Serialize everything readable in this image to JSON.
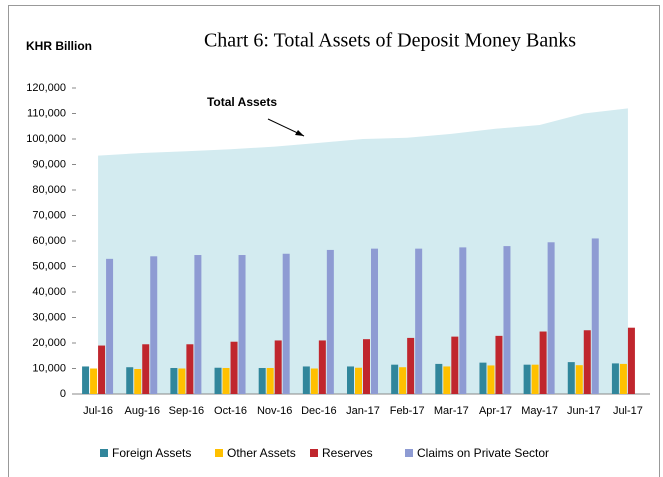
{
  "chart_data": {
    "type": "bar",
    "title": "Chart 6: Total Assets of Deposit Money Banks",
    "y_label": "KHR Billion",
    "annotation": "Total Assets",
    "categories": [
      "Jul-16",
      "Aug-16",
      "Sep-16",
      "Oct-16",
      "Nov-16",
      "Dec-16",
      "Jan-17",
      "Feb-17",
      "Mar-17",
      "Apr-17",
      "May-17",
      "Jun-17",
      "Jul-17"
    ],
    "area": {
      "color": "#d3ebf0",
      "values": [
        93500,
        94500,
        95200,
        96000,
        97000,
        98500,
        100000,
        100500,
        102000,
        104000,
        105500,
        110000,
        112000
      ]
    },
    "series": [
      {
        "name": "Foreign Assets",
        "color": "#31869b",
        "values": [
          10800,
          10500,
          10200,
          10300,
          10200,
          10800,
          10800,
          11500,
          11800,
          12300,
          11500,
          12500,
          12000
        ]
      },
      {
        "name": "Other Assets",
        "color": "#ffc000",
        "values": [
          10000,
          9800,
          10000,
          10200,
          10200,
          10000,
          10300,
          10500,
          10800,
          11200,
          11500,
          11300,
          11800
        ]
      },
      {
        "name": "Reserves",
        "color": "#c0262d",
        "values": [
          19000,
          19500,
          19500,
          20500,
          21000,
          21000,
          21500,
          22000,
          22500,
          22800,
          24500,
          25000,
          26000
        ]
      },
      {
        "name": "Claims on Private Sector",
        "color": "#8e9bd3",
        "values": [
          53000,
          54000,
          54500,
          54500,
          55000,
          56500,
          57000,
          57000,
          57500,
          58000,
          59500,
          61000,
          null
        ]
      }
    ],
    "ylim": [
      0,
      120000
    ],
    "yticks": [
      0,
      {
        "value": 10000,
        "label": "10,000"
      },
      {
        "value": 20000,
        "label": "20,000"
      },
      {
        "value": 30000,
        "label": "30,000"
      },
      {
        "value": 40000,
        "label": "40,000"
      },
      {
        "value": 50000,
        "label": "50,000"
      },
      {
        "value": 60000,
        "label": "60,000"
      },
      {
        "value": 70000,
        "label": "70,000"
      },
      {
        "value": 80000,
        "label": "80,000"
      },
      {
        "value": 90000,
        "label": "90,000"
      },
      {
        "value": 100000,
        "label": "100,000"
      },
      {
        "value": 110000,
        "label": "110,000"
      },
      {
        "value": 120000,
        "label": "120,000"
      }
    ],
    "grid": false
  }
}
